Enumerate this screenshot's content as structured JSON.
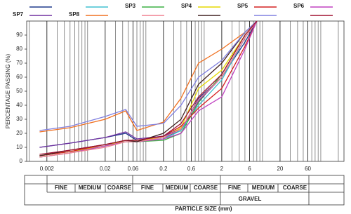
{
  "chart_data": {
    "type": "line",
    "y_label": "PERCENTAGE PASSING (%)",
    "x_label": "PARTICLE SIZE (mm)",
    "log_x": true,
    "x": [
      0.0015,
      0.005,
      0.02,
      0.045,
      0.07,
      0.2,
      0.4,
      0.8,
      2,
      5,
      8
    ],
    "xlim": [
      0.0009,
      250
    ],
    "xticks": [
      0.002,
      0.02,
      0.06,
      0.2,
      0.6,
      2,
      6,
      20,
      60
    ],
    "xgrid": [
      0.001,
      0.003,
      0.004,
      0.005,
      0.006,
      0.007,
      0.008,
      0.009,
      0.01,
      0.03,
      0.04,
      0.05,
      0.07,
      0.08,
      0.09,
      0.1,
      0.3,
      0.4,
      0.5,
      0.7,
      0.8,
      0.9,
      1,
      3,
      4,
      5,
      7,
      8,
      9,
      10,
      30,
      40,
      50,
      70,
      80,
      90,
      100,
      200
    ],
    "ylim": [
      0,
      100
    ],
    "yticks": [
      0,
      10,
      20,
      30,
      40,
      50,
      60,
      70,
      80,
      90
    ],
    "series": [
      {
        "name": null,
        "color": "#1f3a8c",
        "values": [
          10,
          13,
          17,
          20,
          15,
          17,
          22,
          45,
          60,
          85,
          100
        ]
      },
      {
        "name": null,
        "color": "#40c0d0",
        "values": [
          4,
          7,
          11,
          15,
          15,
          16,
          22,
          40,
          58,
          88,
          100
        ]
      },
      {
        "name": "SP3",
        "color": "#3cb043",
        "values": [
          3,
          6,
          11,
          14,
          14,
          15,
          20,
          42,
          62,
          90,
          100
        ]
      },
      {
        "name": "SP4",
        "color": "#e6d800",
        "values": [
          4,
          7,
          11,
          15,
          15,
          17,
          24,
          52,
          65,
          90,
          100
        ]
      },
      {
        "name": "SP5",
        "color": "#d42020",
        "values": [
          4,
          7,
          12,
          15,
          15,
          18,
          25,
          38,
          52,
          82,
          100
        ]
      },
      {
        "name": "SP6",
        "color": "#c040c0",
        "values": [
          3,
          6,
          11,
          14,
          14,
          16,
          20,
          36,
          46,
          80,
          100
        ]
      },
      {
        "name": "SP7",
        "color": "#7030a0",
        "values": [
          10,
          13,
          17,
          21,
          16,
          18,
          23,
          43,
          60,
          88,
          100
        ]
      },
      {
        "name": "SP8",
        "color": "#f07020",
        "values": [
          21,
          24,
          30,
          36,
          22,
          28,
          45,
          70,
          80,
          92,
          100
        ]
      },
      {
        "name": null,
        "color": "#f08090",
        "values": [
          3,
          6,
          10,
          14,
          14,
          17,
          23,
          44,
          60,
          88,
          100
        ]
      },
      {
        "name": null,
        "color": "#402020",
        "values": [
          4,
          8,
          12,
          15,
          14,
          20,
          30,
          55,
          70,
          92,
          100
        ]
      },
      {
        "name": null,
        "color": "#8080e0",
        "values": [
          22,
          25,
          32,
          37,
          25,
          27,
          40,
          60,
          72,
          92,
          100
        ]
      },
      {
        "name": null,
        "color": "#a01030",
        "values": [
          5,
          8,
          12,
          15,
          15,
          18,
          27,
          46,
          62,
          90,
          100
        ]
      }
    ]
  },
  "classification": {
    "sizes": [
      "FINE",
      "MEDIUM",
      "COARSE",
      "FINE",
      "MEDIUM",
      "COARSE",
      "FINE",
      "MEDIUM",
      "COARSE"
    ],
    "gravel": "GRAVEL"
  }
}
